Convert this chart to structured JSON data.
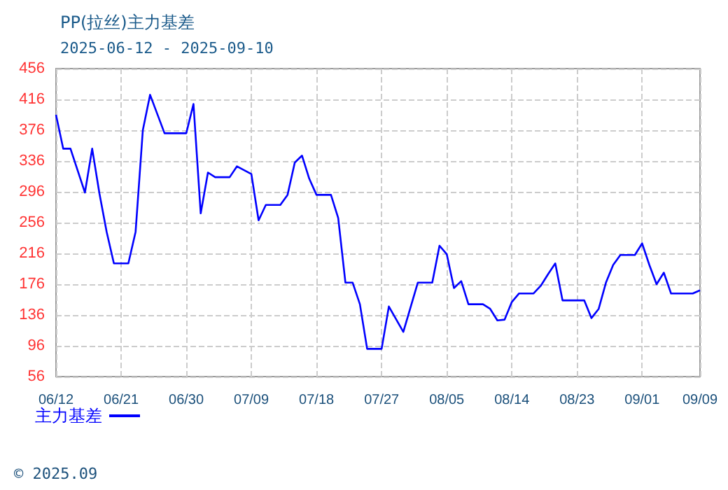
{
  "chart_data": {
    "type": "line",
    "title": "PP(拉丝)主力基差",
    "subtitle": "2025-06-12 - 2025-09-10",
    "x": [
      "2025-06-12",
      "2025-06-13",
      "2025-06-14",
      "2025-06-16",
      "2025-06-17",
      "2025-06-18",
      "2025-06-19",
      "2025-06-20",
      "2025-06-22",
      "2025-06-23",
      "2025-06-24",
      "2025-06-25",
      "2025-06-27",
      "2025-06-30",
      "2025-07-01",
      "2025-07-02",
      "2025-07-03",
      "2025-07-04",
      "2025-07-06",
      "2025-07-07",
      "2025-07-09",
      "2025-07-10",
      "2025-07-11",
      "2025-07-13",
      "2025-07-14",
      "2025-07-15",
      "2025-07-16",
      "2025-07-17",
      "2025-07-18",
      "2025-07-20",
      "2025-07-21",
      "2025-07-22",
      "2025-07-23",
      "2025-07-24",
      "2025-07-25",
      "2025-07-27",
      "2025-07-28",
      "2025-07-30",
      "2025-08-01",
      "2025-08-03",
      "2025-08-04",
      "2025-08-05",
      "2025-08-06",
      "2025-08-07",
      "2025-08-08",
      "2025-08-10",
      "2025-08-11",
      "2025-08-12",
      "2025-08-13",
      "2025-08-14",
      "2025-08-15",
      "2025-08-17",
      "2025-08-18",
      "2025-08-19",
      "2025-08-20",
      "2025-08-21",
      "2025-08-24",
      "2025-08-25",
      "2025-08-26",
      "2025-08-27",
      "2025-08-28",
      "2025-08-29",
      "2025-08-31",
      "2025-09-01",
      "2025-09-02",
      "2025-09-03",
      "2025-09-04",
      "2025-09-05",
      "2025-09-08",
      "2025-09-09"
    ],
    "series": [
      {
        "name": "主力基差",
        "color": "#0000ff",
        "values": [
          396,
          352,
          352,
          295,
          352,
          294,
          244,
          203,
          203,
          244,
          376,
          422,
          372,
          372,
          410,
          268,
          321,
          315,
          315,
          329,
          319,
          259,
          279,
          279,
          292,
          334,
          343,
          313,
          292,
          292,
          262,
          178,
          178,
          150,
          92,
          92,
          147,
          114,
          178,
          178,
          226,
          215,
          171,
          180,
          150,
          150,
          144,
          129,
          130,
          153,
          164,
          164,
          174,
          189,
          203,
          155,
          155,
          132,
          144,
          178,
          201,
          214,
          214,
          229,
          201,
          176,
          191,
          164,
          164,
          168
        ]
      }
    ],
    "xlim": [
      "2025-06-12",
      "2025-09-09"
    ],
    "xticks": [
      {
        "value": "2025-06-12",
        "label": "06/12"
      },
      {
        "value": "2025-06-21",
        "label": "06/21"
      },
      {
        "value": "2025-06-30",
        "label": "06/30"
      },
      {
        "value": "2025-07-09",
        "label": "07/09"
      },
      {
        "value": "2025-07-18",
        "label": "07/18"
      },
      {
        "value": "2025-07-27",
        "label": "07/27"
      },
      {
        "value": "2025-08-05",
        "label": "08/05"
      },
      {
        "value": "2025-08-14",
        "label": "08/14"
      },
      {
        "value": "2025-08-23",
        "label": "08/23"
      },
      {
        "value": "2025-09-01",
        "label": "09/01"
      },
      {
        "value": "2025-09-09",
        "label": "09/09"
      }
    ],
    "ylim": [
      56,
      456
    ],
    "yticks": [
      56,
      96,
      136,
      176,
      216,
      256,
      296,
      336,
      376,
      416,
      456
    ],
    "grid": true,
    "legend": "bottom left",
    "marker": "none",
    "line_style": "solid",
    "annotations": [
      "© 2025.09"
    ]
  }
}
